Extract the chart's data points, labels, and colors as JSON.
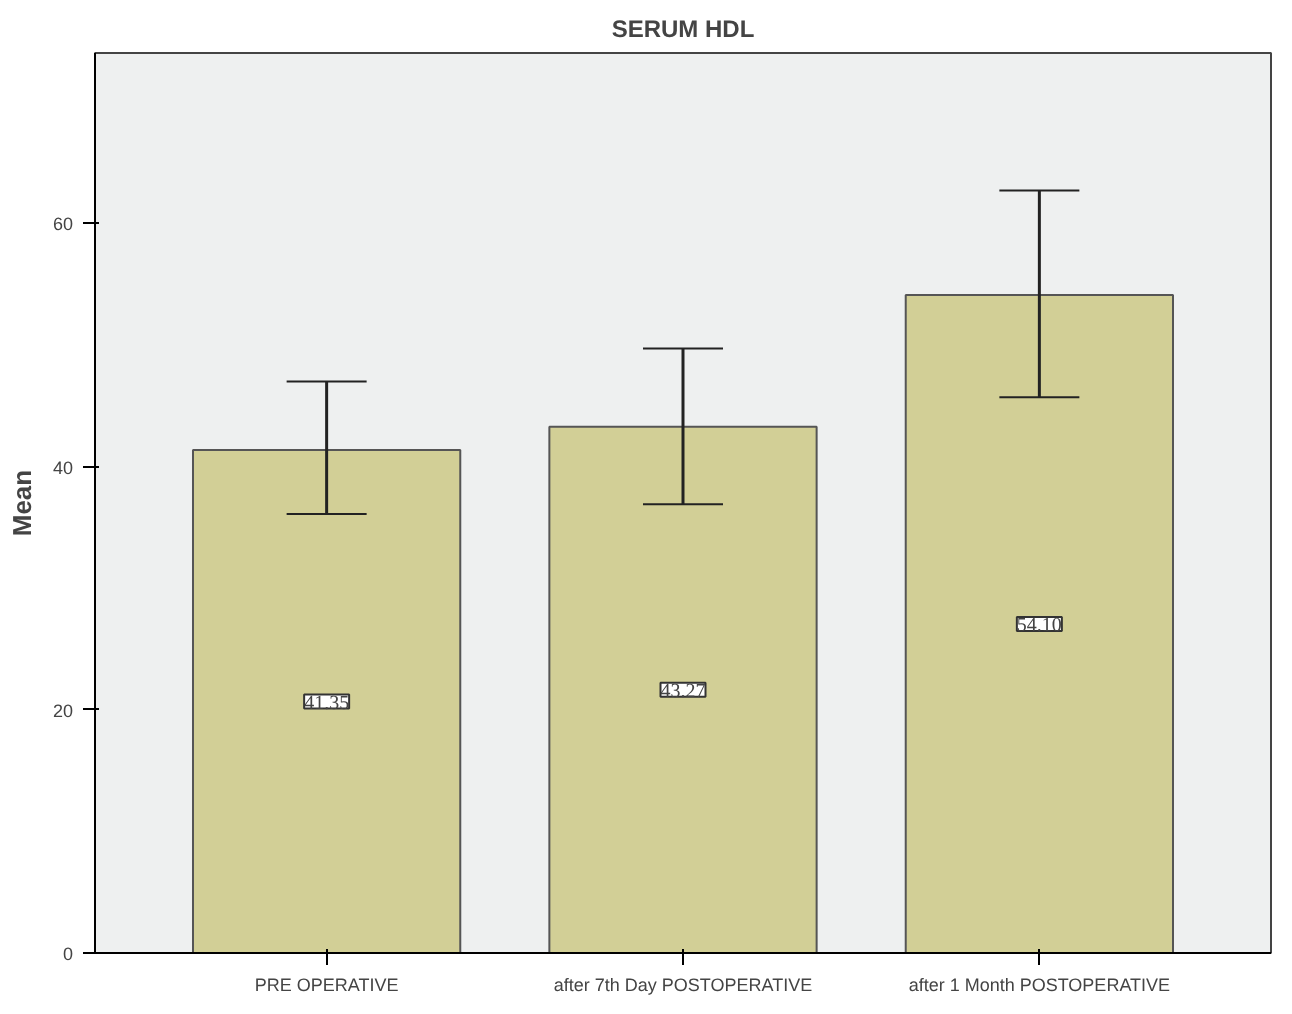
{
  "chart_data": {
    "type": "bar",
    "title": "SERUM HDL",
    "ylabel": "Mean",
    "categories": [
      "PRE OPERATIVE",
      "after 7th Day POSTOPERATIVE",
      "after 1 Month POSTOPERATIVE"
    ],
    "values": [
      41.35,
      43.27,
      54.1
    ],
    "value_labels": [
      "41.35",
      "43.27",
      "54.10"
    ],
    "errors": [
      [
        36.1,
        47.0
      ],
      [
        36.9,
        49.7
      ],
      [
        45.7,
        62.7
      ]
    ],
    "color": "#d2cf96",
    "ylim": [
      0,
      74
    ],
    "yticks": [
      0,
      20,
      40,
      60
    ],
    "grid": false
  }
}
